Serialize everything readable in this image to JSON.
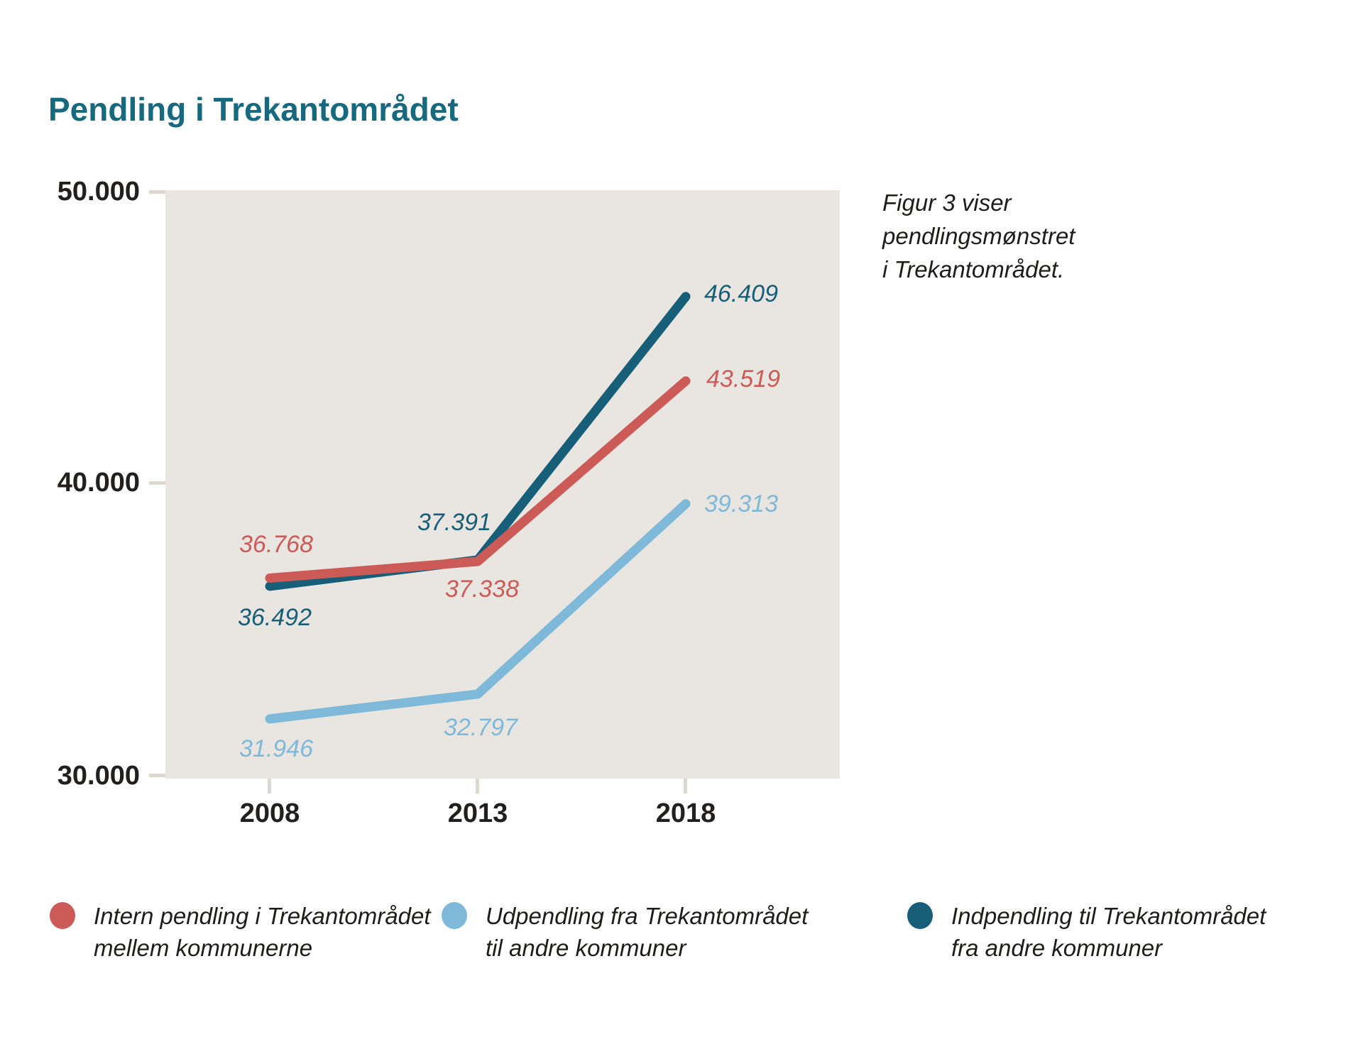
{
  "title": "Pendling i Trekantområdet",
  "note": {
    "lines": [
      "Figur 3 viser",
      "pendlingsmønstret",
      "i Trekantområdet."
    ]
  },
  "colors": {
    "intern": "#cc5a56",
    "udpendling": "#7fb9d9",
    "indpendling": "#175f78",
    "title_text": "#17697f",
    "plot_bg": "#e9e6e1",
    "axis_text": "#221f1f",
    "tick": "#dcd8d1",
    "note_text": "#1d1d1b"
  },
  "chart_data": {
    "type": "line",
    "categories": [
      "2008",
      "2013",
      "2018"
    ],
    "series": [
      {
        "name": "Indpendling til Trekantområdet fra andre kommuner",
        "color_key": "indpendling",
        "values": [
          36492,
          37391,
          46409
        ]
      },
      {
        "name": "Intern pendling i Trekantområdet mellem kommunerne",
        "color_key": "intern",
        "values": [
          36768,
          37338,
          43519
        ]
      },
      {
        "name": "Udpendling fra Trekantområdet til andre kommuner",
        "color_key": "udpendling",
        "values": [
          31946,
          32797,
          39313
        ]
      }
    ],
    "ylim": [
      30000,
      50000
    ],
    "ytick_values": [
      30000,
      40000,
      50000
    ],
    "grid": false,
    "data_labels": true,
    "legend_position": "bottom",
    "number_format": "thousands-dot"
  },
  "axis": {
    "y_labels": [
      "50.000",
      "40.000",
      "30.000"
    ],
    "x_labels": [
      "2008",
      "2013",
      "2018"
    ]
  },
  "legend": {
    "items": [
      {
        "line1": "Intern pendling i Trekantområdet",
        "line2": "mellem kommunerne",
        "color_key": "intern"
      },
      {
        "line1": "Udpendling fra Trekantområdet",
        "line2": "til andre kommuner",
        "color_key": "udpendling"
      },
      {
        "line1": "Indpendling til Trekantområdet",
        "line2": "fra andre kommuner",
        "color_key": "indpendling"
      }
    ]
  }
}
